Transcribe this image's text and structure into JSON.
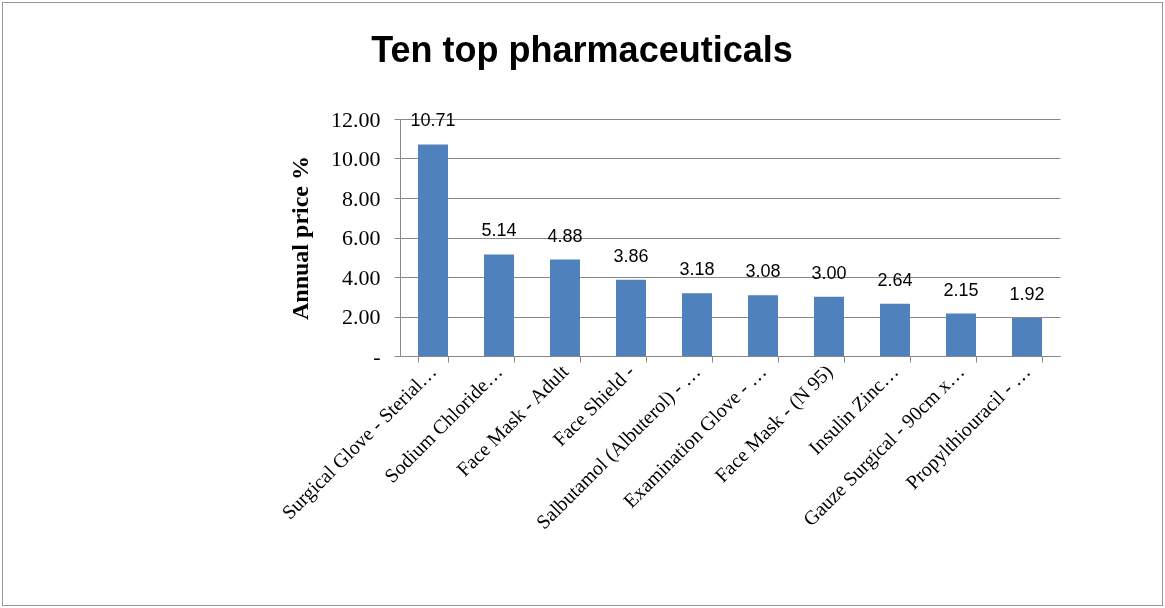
{
  "chart_data": {
    "type": "bar",
    "title": "Ten top pharmaceuticals",
    "ylabel": "Annual price %",
    "categories": [
      "Surgical Glove - Sterial…",
      "Sodium Chloride…",
      "Face Mask - Adult",
      "Face Shield -",
      "Salbutamol (Albuterol) - …",
      "Examination Glove - …",
      "Face Mask - (N 95)",
      "Insulin Zinc…",
      "Gauze Surgical - 90cm x…",
      "Propylthiouracil - …"
    ],
    "values": [
      10.71,
      5.14,
      4.88,
      3.86,
      3.18,
      3.08,
      3.0,
      2.64,
      2.15,
      1.92
    ],
    "value_labels": [
      "10.71",
      "5.14",
      "4.88",
      "3.86",
      "3.18",
      "3.08",
      "3.00",
      "2.64",
      "2.15",
      "1.92"
    ],
    "color": "#4f81bd",
    "ylim": [
      0,
      12
    ],
    "yticks": [
      {
        "value": 0,
        "label": "-"
      },
      {
        "value": 2,
        "label": "2.00"
      },
      {
        "value": 4,
        "label": "4.00"
      },
      {
        "value": 6,
        "label": "6.00"
      },
      {
        "value": 8,
        "label": "8.00"
      },
      {
        "value": 10,
        "label": "10.00"
      },
      {
        "value": 12,
        "label": "12.00"
      }
    ],
    "grid": "y"
  }
}
